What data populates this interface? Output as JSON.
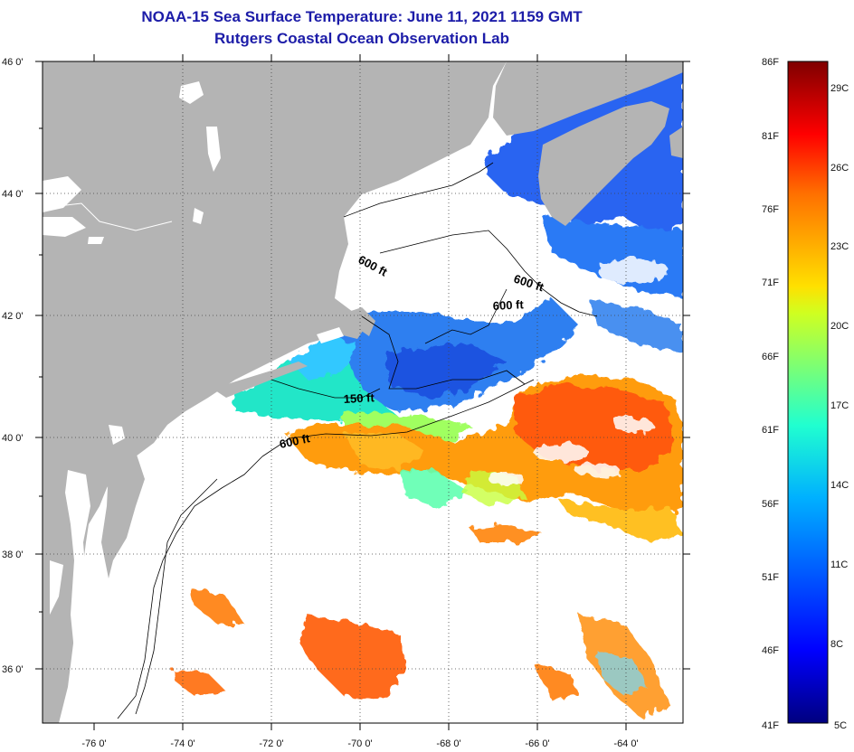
{
  "title": {
    "line1": "NOAA-15 Sea Surface Temperature:  June 11, 2021 1159 GMT",
    "line2": "Rutgers Coastal Ocean Observation Lab"
  },
  "map": {
    "lat_labels": [
      "46 0'",
      "44 0'",
      "42 0'",
      "40 0'",
      "38 0'",
      "36 0'"
    ],
    "lon_labels": [
      "-76 0'",
      "-74 0'",
      "-72 0'",
      "-70 0'",
      "-68 0'",
      "-66 0'",
      "-64 0'"
    ],
    "contour_labels": [
      "600 ft",
      "600 ft",
      "600 ft",
      "150 ft",
      "600 ft"
    ],
    "land_color": "#b4b4b4",
    "grid": "dotted"
  },
  "colorbar": {
    "fahrenheit_labels": [
      "86F",
      "81F",
      "76F",
      "71F",
      "66F",
      "61F",
      "56F",
      "51F",
      "46F",
      "41F"
    ],
    "celsius_labels": [
      "29C",
      "26C",
      "23C",
      "20C",
      "17C",
      "14C",
      "11C",
      "8C",
      "5C"
    ],
    "range_f": [
      41,
      86
    ],
    "colormap": "jet (dark blue = cold, dark red = warm)"
  }
}
